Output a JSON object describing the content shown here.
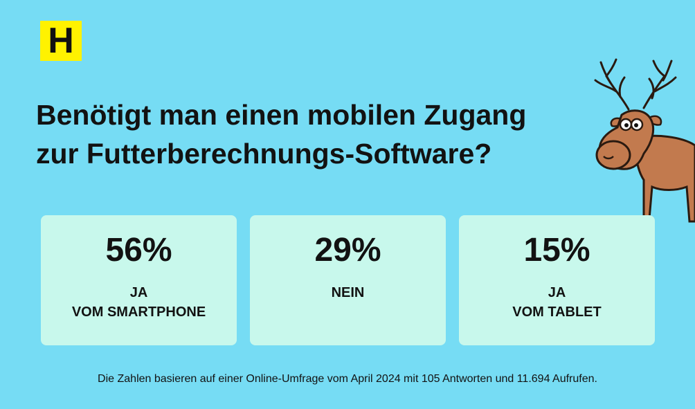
{
  "colors": {
    "background": "#76dcf4",
    "card": "#c8f8ec",
    "logo_bg": "#fff200",
    "text": "#121212",
    "moose_body": "#c27a4e"
  },
  "logo": {
    "letter": "H"
  },
  "headline": {
    "line1": "Benötigt man einen mobilen Zugang",
    "line2": "zur Futterberechnungs-Software?"
  },
  "results": [
    {
      "value": "56%",
      "label_line1": "JA",
      "label_line2": "VOM SMARTPHONE"
    },
    {
      "value": "29%",
      "label_line1": "NEIN",
      "label_line2": ""
    },
    {
      "value": "15%",
      "label_line1": "JA",
      "label_line2": "VOM TABLET"
    }
  ],
  "footnote": "Die Zahlen basieren auf einer Online-Umfrage vom April 2024 mit 105 Antworten und 11.694 Aufrufen.",
  "illustration": {
    "icon": "moose-cartoon"
  }
}
